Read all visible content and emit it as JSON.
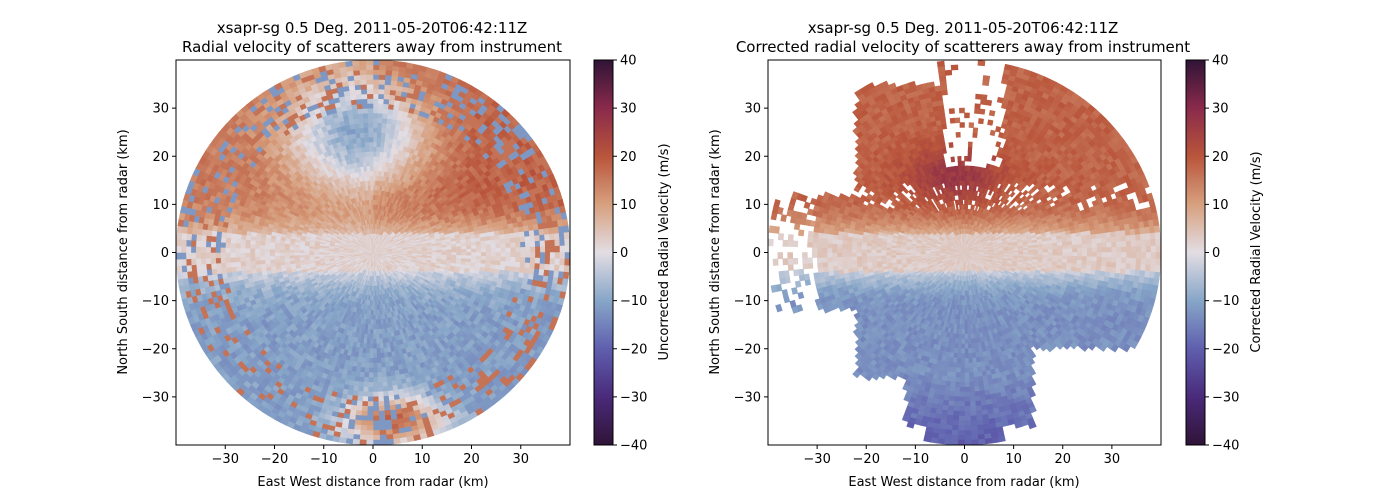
{
  "chart_data": [
    {
      "type": "heatmap",
      "subtype": "radar-ppi",
      "title": "xsapr-sg 0.5 Deg. 2011-05-20T06:42:11Z",
      "subtitle": "Radial velocity of scatterers away from instrument",
      "xlabel": "East West distance from radar (km)",
      "ylabel": "North South distance from radar (km)",
      "xticks": [
        -30,
        -20,
        -10,
        0,
        10,
        20,
        30
      ],
      "yticks": [
        -30,
        -20,
        -10,
        0,
        10,
        20,
        30
      ],
      "xlim": [
        -40,
        40
      ],
      "ylim": [
        -40,
        40
      ],
      "range_km": 40,
      "colorbar": {
        "label": "Uncorrected Radial Velocity (m/s)",
        "min": -40,
        "max": 40,
        "ticks": [
          -40,
          -30,
          -20,
          -10,
          0,
          10,
          20,
          30,
          40
        ],
        "colormap": "twilight_shifted"
      },
      "velocity_regions_m_s": [
        {
          "region": "north-center",
          "value": -10
        },
        {
          "region": "northeast",
          "value": 17
        },
        {
          "region": "northwest",
          "value": 15
        },
        {
          "region": "east-west band near 0 km",
          "value": 2
        },
        {
          "region": "south-center",
          "value": -12
        },
        {
          "region": "far south",
          "value": 18
        }
      ]
    },
    {
      "type": "heatmap",
      "subtype": "radar-ppi",
      "title": "xsapr-sg 0.5 Deg. 2011-05-20T06:42:11Z",
      "subtitle": "Corrected radial velocity of scatterers away from instrument",
      "xlabel": "East West distance from radar (km)",
      "ylabel": "North South distance from radar (km)",
      "xticks": [
        -30,
        -20,
        -10,
        0,
        10,
        20,
        30
      ],
      "yticks": [
        -30,
        -20,
        -10,
        0,
        10,
        20,
        30
      ],
      "xlim": [
        -40,
        40
      ],
      "ylim": [
        -40,
        40
      ],
      "range_km": 40,
      "colorbar": {
        "label": "Corrected Radial Velocity (m/s)",
        "min": -40,
        "max": 40,
        "ticks": [
          -40,
          -30,
          -20,
          -10,
          0,
          10,
          20,
          30,
          40
        ],
        "colormap": "twilight_shifted"
      },
      "velocity_regions_m_s": [
        {
          "region": "north",
          "value": 20
        },
        {
          "region": "north-center core",
          "value": 27
        },
        {
          "region": "east-west band near 0 km",
          "value": 3
        },
        {
          "region": "south",
          "value": -14
        },
        {
          "region": "far south",
          "value": -18
        }
      ]
    }
  ]
}
